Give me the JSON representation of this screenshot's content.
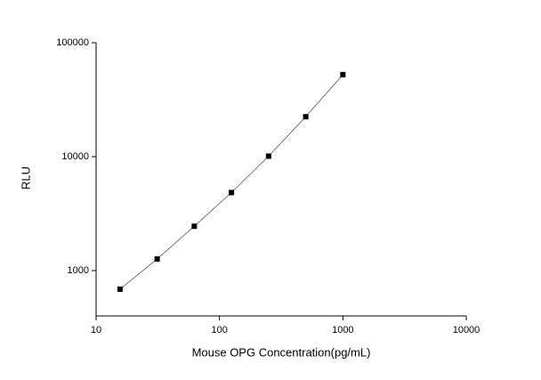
{
  "chart_data": {
    "type": "scatter",
    "x_label": "Mouse OPG Concentration(pg/mL)",
    "y_label": "RLU",
    "x": [
      15.625,
      31.25,
      62.5,
      125,
      250,
      500,
      1000
    ],
    "values": [
      687,
      1263,
      2450,
      4840,
      10100,
      22400,
      52500
    ],
    "color": "#000000",
    "line_color": "#555555",
    "connect": true,
    "xscale": "log",
    "yscale": "log",
    "xlim": [
      10,
      10000
    ],
    "ylim": [
      400,
      100000
    ],
    "xticks": [
      10,
      100,
      1000,
      10000
    ],
    "yticks": [
      1000,
      10000,
      100000
    ]
  }
}
